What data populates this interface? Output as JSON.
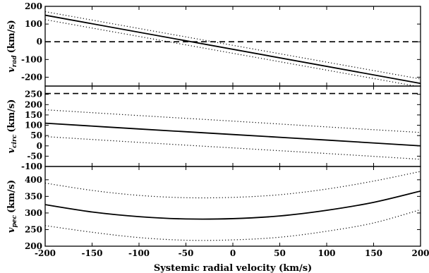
{
  "chart_data": [
    {
      "type": "line",
      "panel": "top",
      "ylabel_symbol": "v",
      "ylabel_sub": "rad",
      "ylabel_unit": "(km/s)",
      "ylim": [
        -250,
        200
      ],
      "xlim": [
        -200,
        200
      ],
      "yticks": [
        200,
        100,
        0,
        -100,
        -200
      ],
      "ytick_labels": [
        "200",
        "100",
        "0",
        "-100",
        "-200"
      ],
      "series": [
        {
          "style": "solid",
          "x": [
            -200,
            200
          ],
          "y": [
            150,
            -235
          ]
        },
        {
          "style": "dotted",
          "x": [
            -200,
            200
          ],
          "y": [
            170,
            -210
          ]
        },
        {
          "style": "dotted",
          "x": [
            -200,
            200
          ],
          "y": [
            125,
            -255
          ]
        },
        {
          "style": "dashed",
          "x": [
            -200,
            200
          ],
          "y": [
            0,
            0
          ]
        }
      ]
    },
    {
      "type": "line",
      "panel": "middle",
      "ylabel_symbol": "v",
      "ylabel_sub": "circ",
      "ylabel_unit": "(km/s)",
      "ylim": [
        -100,
        290
      ],
      "xlim": [
        -200,
        200
      ],
      "yticks": [
        250,
        200,
        150,
        100,
        50,
        0,
        -50,
        -100
      ],
      "ytick_labels": [
        "250",
        "200",
        "150",
        "100",
        "50",
        "0",
        "-50",
        "-100"
      ],
      "series": [
        {
          "style": "solid",
          "x": [
            -200,
            -100,
            0,
            100,
            200
          ],
          "y": [
            110,
            82,
            55,
            28,
            0
          ]
        },
        {
          "style": "dotted",
          "x": [
            -200,
            -100,
            0,
            100,
            200
          ],
          "y": [
            175,
            147,
            120,
            92,
            65
          ]
        },
        {
          "style": "dotted",
          "x": [
            -200,
            -100,
            0,
            100,
            200
          ],
          "y": [
            45,
            17,
            -10,
            -37,
            -65
          ]
        },
        {
          "style": "dashed",
          "x": [
            -200,
            200
          ],
          "y": [
            254,
            254
          ]
        }
      ]
    },
    {
      "type": "line",
      "panel": "bottom",
      "ylabel_symbol": "v",
      "ylabel_sub": "pec",
      "ylabel_unit": "(km/s)",
      "ylim": [
        200,
        440
      ],
      "xlim": [
        -200,
        200
      ],
      "xlabel": "Systemic radial velocity (km/s)",
      "xticks": [
        -200,
        -150,
        -100,
        -50,
        0,
        50,
        100,
        150,
        200
      ],
      "xtick_labels": [
        "-200",
        "-150",
        "-100",
        "-50",
        "0",
        "50",
        "100",
        "150",
        "200"
      ],
      "yticks": [
        400,
        350,
        300,
        250,
        200
      ],
      "ytick_labels": [
        "400",
        "350",
        "300",
        "250",
        "200"
      ],
      "series": [
        {
          "style": "solid",
          "x": [
            -200,
            -150,
            -100,
            -50,
            0,
            50,
            100,
            150,
            200
          ],
          "y": [
            325,
            303,
            289,
            282,
            283,
            291,
            308,
            332,
            366
          ]
        },
        {
          "style": "dotted",
          "x": [
            -200,
            -150,
            -100,
            -50,
            0,
            50,
            100,
            150,
            200
          ],
          "y": [
            390,
            368,
            353,
            346,
            347,
            355,
            372,
            396,
            425
          ]
        },
        {
          "style": "dotted",
          "x": [
            -200,
            -150,
            -100,
            -50,
            0,
            50,
            100,
            150,
            200
          ],
          "y": [
            262,
            242,
            226,
            218,
            219,
            227,
            245,
            270,
            310
          ]
        }
      ]
    }
  ]
}
